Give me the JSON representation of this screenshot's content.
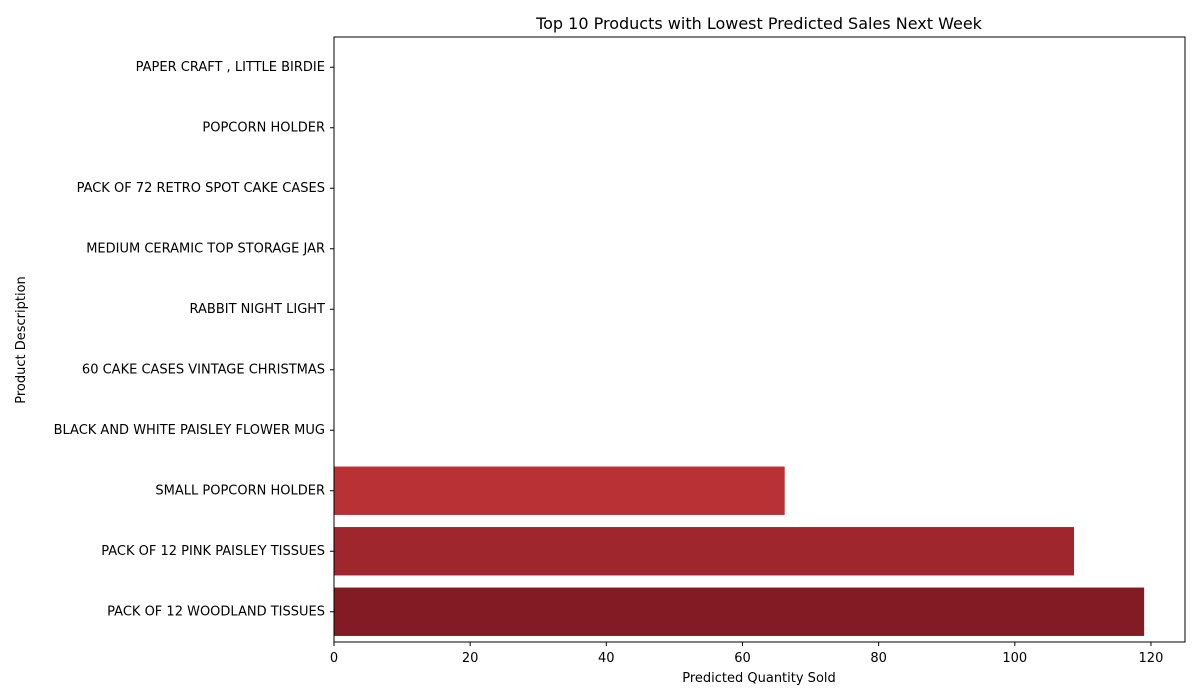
{
  "chart_data": {
    "type": "bar",
    "orientation": "horizontal",
    "title": "Top 10 Products with Lowest Predicted Sales Next Week",
    "xlabel": "Predicted Quantity Sold",
    "ylabel": "Product Description",
    "xlim": [
      0,
      125
    ],
    "xticks": [
      0,
      20,
      40,
      60,
      80,
      100,
      120
    ],
    "grid": false,
    "categories": [
      "PAPER CRAFT , LITTLE BIRDIE",
      "POPCORN HOLDER",
      "PACK OF 72 RETRO SPOT CAKE CASES",
      "MEDIUM CERAMIC TOP STORAGE JAR",
      "RABBIT NIGHT LIGHT",
      "60 CAKE CASES VINTAGE CHRISTMAS",
      "BLACK AND WHITE PAISLEY FLOWER MUG",
      "SMALL POPCORN HOLDER",
      "PACK OF 12 PINK PAISLEY TISSUES",
      "PACK OF 12 WOODLAND TISSUES"
    ],
    "values": [
      0,
      0,
      0,
      0,
      0,
      0,
      0,
      66.2,
      108.7,
      119.0
    ],
    "colors": [
      "#fee6dc",
      "#fdd2bf",
      "#fcb79c",
      "#fc9474",
      "#fb7050",
      "#f34c37",
      "#dc2a25",
      "#b93135",
      "#a0262e",
      "#831b25"
    ]
  }
}
